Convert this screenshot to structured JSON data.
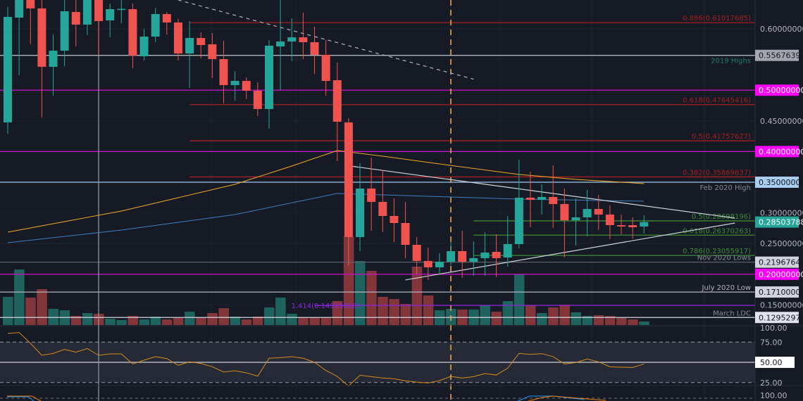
{
  "chart_data": {
    "type": "candlestick",
    "title": "",
    "price_range": [
      0.115,
      0.647
    ],
    "colors": {
      "up": "#26a69a",
      "down": "#ef5350",
      "up_volume": "#1f6b64",
      "down_volume": "#8e3a3c",
      "background": "#161a25"
    },
    "candles": [
      [
        0.4475,
        0.6356,
        0.4291,
        0.6195
      ],
      [
        0.6183,
        0.65,
        0.5243,
        0.647
      ],
      [
        0.647,
        0.65,
        0.5748,
        0.6333
      ],
      [
        0.6333,
        0.647,
        0.4555,
        0.5381
      ],
      [
        0.5381,
        0.5908,
        0.4911,
        0.5644
      ],
      [
        0.5644,
        0.647,
        0.5392,
        0.6287
      ],
      [
        0.6275,
        0.647,
        0.5713,
        0.6069
      ],
      [
        0.6069,
        0.65,
        0.5897,
        0.647
      ],
      [
        0.647,
        0.65,
        0.5576,
        0.6126
      ],
      [
        0.6138,
        0.6413,
        0.5862,
        0.6321
      ],
      [
        0.6321,
        0.647,
        0.6092,
        0.6325
      ],
      [
        0.6321,
        0.6413,
        0.5358,
        0.5564
      ],
      [
        0.5553,
        0.6,
        0.5484,
        0.5874
      ],
      [
        0.5874,
        0.6344,
        0.5782,
        0.6241
      ],
      [
        0.6241,
        0.6275,
        0.5908,
        0.6103
      ],
      [
        0.6103,
        0.6161,
        0.5484,
        0.5599
      ],
      [
        0.5599,
        0.6126,
        0.5037,
        0.5851
      ],
      [
        0.5851,
        0.5943,
        0.5518,
        0.5736
      ],
      [
        0.5748,
        0.5931,
        0.5197,
        0.5507
      ],
      [
        0.5507,
        0.5805,
        0.4784,
        0.5083
      ],
      [
        0.5083,
        0.5312,
        0.483,
        0.5151
      ],
      [
        0.5151,
        0.5209,
        0.4853,
        0.4991
      ],
      [
        0.4991,
        0.5128,
        0.4578,
        0.4693
      ],
      [
        0.4693,
        0.5817,
        0.4372,
        0.5725
      ],
      [
        0.5713,
        0.647,
        0.5002,
        0.5794
      ],
      [
        0.5794,
        0.6172,
        0.5472,
        0.5862
      ],
      [
        0.5862,
        0.6264,
        0.5507,
        0.5782
      ],
      [
        0.5782,
        0.6034,
        0.5266,
        0.5576
      ],
      [
        0.5576,
        0.5817,
        0.4911,
        0.5151
      ],
      [
        0.5163,
        0.545,
        0.3844,
        0.4486
      ],
      [
        0.4475,
        0.4544,
        0.2135,
        0.2606
      ],
      [
        0.2606,
        0.381,
        0.2376,
        0.3397
      ],
      [
        0.3397,
        0.3901,
        0.2709,
        0.3179
      ],
      [
        0.3179,
        0.3695,
        0.2686,
        0.295
      ],
      [
        0.295,
        0.3236,
        0.2525,
        0.2835
      ],
      [
        0.2835,
        0.3179,
        0.2262,
        0.2479
      ],
      [
        0.2479,
        0.2606,
        0.1998,
        0.2216
      ],
      [
        0.2216,
        0.2433,
        0.1906,
        0.2112
      ],
      [
        0.2112,
        0.2342,
        0.1998,
        0.2204
      ],
      [
        0.2204,
        0.2537,
        0.2147,
        0.2376
      ],
      [
        0.2376,
        0.2709,
        0.194,
        0.2204
      ],
      [
        0.2204,
        0.2537,
        0.1975,
        0.2262
      ],
      [
        0.2262,
        0.2686,
        0.1975,
        0.2353
      ],
      [
        0.2365,
        0.2651,
        0.1952,
        0.2262
      ],
      [
        0.2273,
        0.295,
        0.2124,
        0.2491
      ],
      [
        0.2491,
        0.3867,
        0.2422,
        0.3248
      ],
      [
        0.3248,
        0.3672,
        0.2766,
        0.3213
      ],
      [
        0.3213,
        0.3466,
        0.2973,
        0.3259
      ],
      [
        0.3259,
        0.3775,
        0.2755,
        0.3144
      ],
      [
        0.3144,
        0.3397,
        0.2273,
        0.2881
      ],
      [
        0.2881,
        0.3236,
        0.2468,
        0.2927
      ],
      [
        0.2927,
        0.3374,
        0.2617,
        0.3064
      ],
      [
        0.3064,
        0.3294,
        0.272,
        0.2973
      ],
      [
        0.2973,
        0.3122,
        0.2571,
        0.28
      ],
      [
        0.28,
        0.2973,
        0.2651,
        0.2778
      ],
      [
        0.28,
        0.2927,
        0.2583,
        0.2766
      ],
      [
        0.2778,
        0.2961,
        0.2663,
        0.285
      ]
    ],
    "volume_relative": [
      40,
      79,
      39,
      51,
      23,
      21,
      13,
      17,
      16,
      9,
      7,
      13,
      8,
      12,
      8,
      10,
      19,
      11,
      17,
      24,
      12,
      8,
      12,
      25,
      39,
      16,
      11,
      11,
      11,
      34,
      126,
      91,
      77,
      40,
      37,
      30,
      83,
      42,
      21,
      23,
      22,
      22,
      28,
      19,
      34,
      72,
      28,
      17,
      25,
      29,
      18,
      13,
      14,
      13,
      10,
      8,
      5
    ],
    "moving_averages": [
      {
        "name": "orange-ma",
        "color": "#f5a623",
        "points": [
          [
            0,
            0.2686
          ],
          [
            5,
            0.2858
          ],
          [
            10,
            0.303
          ],
          [
            15,
            0.3248
          ],
          [
            20,
            0.3466
          ],
          [
            25,
            0.3764
          ],
          [
            29,
            0.4016
          ],
          [
            33,
            0.3924
          ],
          [
            38,
            0.3798
          ],
          [
            45,
            0.3626
          ],
          [
            50,
            0.3546
          ],
          [
            56,
            0.3477
          ]
        ]
      },
      {
        "name": "blue-ma",
        "color": "#3d7fc1",
        "points": [
          [
            0,
            0.2514
          ],
          [
            10,
            0.272
          ],
          [
            20,
            0.2973
          ],
          [
            29,
            0.3317
          ],
          [
            35,
            0.3282
          ],
          [
            45,
            0.3225
          ],
          [
            56,
            0.319
          ]
        ]
      }
    ],
    "trendlines": [
      {
        "name": "dashed-downtrend",
        "color": "#b2b5be",
        "dashed": true,
        "from": [
          15,
          0.647
        ],
        "to": [
          41,
          0.518
        ]
      },
      {
        "name": "triangle-upper",
        "color": "#d1d4dc",
        "dashed": false,
        "from": [
          30.1,
          0.3765
        ],
        "to": [
          64,
          0.2915
        ]
      },
      {
        "name": "triangle-lower",
        "color": "#d1d4dc",
        "dashed": false,
        "from": [
          35,
          0.1907
        ],
        "to": [
          64,
          0.2835
        ]
      }
    ],
    "levels": [
      {
        "label": "0.886(0.61017685)",
        "price": 0.61017685,
        "color": "#a32020",
        "start": 16,
        "label_pos": "above"
      },
      {
        "label": "0.618(0.47645416)",
        "price": 0.47645416,
        "color": "#a32020",
        "start": 16,
        "label_pos": "above"
      },
      {
        "label": "0.5(0.41757627)",
        "price": 0.41757627,
        "color": "#a32020",
        "start": 16,
        "label_pos": "above"
      },
      {
        "label": "0.382(0.35869837)",
        "price": 0.35869837,
        "color": "#a32020",
        "start": 16,
        "label_pos": "above"
      },
      {
        "label": "0.5(0.28698196)",
        "price": 0.28698196,
        "color": "#3d8b37",
        "start": 41,
        "label_pos": "above"
      },
      {
        "label": "0.618(0.26370263)",
        "price": 0.26370263,
        "color": "#3d8b37",
        "start": 41,
        "label_pos": "above"
      },
      {
        "label": "0.786(0.23055917)",
        "price": 0.23055917,
        "color": "#3d8b37",
        "start": 41,
        "label_pos": "above"
      },
      {
        "label": "1.414(0.14918560)",
        "price": 0.1491856,
        "color": "#8e24e0",
        "start": 27,
        "label_pos": "inline"
      },
      {
        "label": "2019 Highs",
        "price": 0.5567639,
        "color": "#b2b5be",
        "text_color": "#1f7a5c",
        "start": -1,
        "label_pos": "below"
      },
      {
        "label": "Feb 2020 High",
        "price": 0.35,
        "color": "#9fc9ee",
        "text_color": "#868993",
        "start": -1,
        "label_pos": "below"
      },
      {
        "label": "Nov 2020 Lows",
        "price": 0.21967643,
        "color": "#5d606b",
        "text_color": "#868993",
        "start": -1,
        "label_pos": "above"
      },
      {
        "label": "July 2020 Low",
        "price": 0.171,
        "color": "#b2b5be",
        "text_color": "#b2b5be",
        "start": -1,
        "label_pos": "above"
      },
      {
        "label": "March LDC",
        "price": 0.12952975,
        "color": "#d1d4dc",
        "text_color": "#868993",
        "start": -1,
        "label_pos": "above"
      },
      {
        "label": "",
        "price": 0.5,
        "color": "#c211c2",
        "start": -1,
        "label_pos": "none"
      },
      {
        "label": "",
        "price": 0.4,
        "color": "#d514d5",
        "start": -1,
        "label_pos": "none"
      },
      {
        "label": "",
        "price": 0.2,
        "color": "#c211c2",
        "start": -1,
        "label_pos": "none"
      }
    ],
    "vertical_lines": [
      {
        "name": "crosshair-vertical",
        "index": 8,
        "color": "#9598a1",
        "dashed": false
      },
      {
        "name": "date-marker",
        "index": 39,
        "color": "#f0a050",
        "dashed": true
      }
    ],
    "price_axis_ticks": [
      {
        "text": "0.60000000",
        "price": 0.6
      },
      {
        "text": "0.45000000",
        "price": 0.45
      },
      {
        "text": "0.30000000",
        "price": 0.3
      },
      {
        "text": "0.25000000",
        "price": 0.25
      },
      {
        "text": "0.15000000",
        "price": 0.15
      }
    ],
    "price_axis_labels": [
      {
        "text": "0.55676390",
        "price": 0.5567639,
        "bg": "#a3a6ad",
        "fg": "#131722"
      },
      {
        "text": "0.50000000",
        "price": 0.5,
        "bg": "#ff00ff",
        "fg": "#ffffff"
      },
      {
        "text": "0.40000000",
        "price": 0.4,
        "bg": "#ff00ff",
        "fg": "#ffffff"
      },
      {
        "text": "0.35000000",
        "price": 0.35,
        "bg": "#a8cdee",
        "fg": "#131722"
      },
      {
        "text": "0.28503788",
        "price": 0.28503788,
        "bg": "#26a69a",
        "fg": "#ffffff"
      },
      {
        "text": "0.21967643",
        "price": 0.21967643,
        "bg": "#d1d4dc",
        "fg": "#131722"
      },
      {
        "text": "0.20000000",
        "price": 0.2,
        "bg": "#ff00ff",
        "fg": "#ffffff"
      },
      {
        "text": "0.17100000",
        "price": 0.171,
        "bg": "#d1d4dc",
        "fg": "#131722"
      },
      {
        "text": "0.12952975",
        "price": 0.12952975,
        "bg": "#e0e3eb",
        "fg": "#131722"
      }
    ],
    "rsi": {
      "color": "#d68a1c",
      "range": [
        0,
        100
      ],
      "bands": [
        25,
        75
      ],
      "midline": 50,
      "values": [
        85.6,
        86.8,
        73.5,
        58.7,
        61,
        66,
        62.5,
        67,
        58.7,
        60.4,
        60.4,
        48,
        52.6,
        57,
        54.6,
        46.3,
        50.6,
        48.6,
        44.5,
        38.1,
        39.6,
        37,
        32.9,
        55,
        55.8,
        57,
        55,
        50,
        39.9,
        32.6,
        20.7,
        34,
        32.3,
        30.6,
        29.7,
        27.1,
        25.4,
        24.5,
        27.4,
        32.6,
        30.6,
        32.3,
        36.1,
        34.3,
        42.8,
        61,
        59.8,
        60.7,
        57,
        48,
        49.7,
        54,
        50.6,
        44.5,
        43.9,
        43.6,
        48
      ],
      "axis_labels": [
        {
          "text": "75.00",
          "value": 75,
          "boxed": false
        },
        {
          "text": "50.00",
          "value": 50,
          "boxed": true
        },
        {
          "text": "25.00",
          "value": 25,
          "boxed": false
        }
      ],
      "top_label": "100.00"
    },
    "lower_pane": {
      "top_label": "100.00"
    }
  }
}
